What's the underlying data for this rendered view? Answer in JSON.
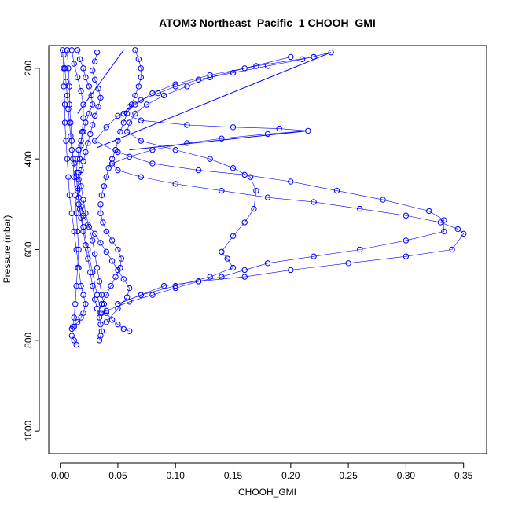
{
  "chart_data": {
    "type": "scatter",
    "title": "ATOM3 Northeast_Pacific_1 CHOOH_GMI",
    "xlabel": "CHOOH_GMI",
    "ylabel": "Pressure (mbar)",
    "xlim": [
      -0.01,
      0.37
    ],
    "ylim": [
      1050,
      150
    ],
    "y_reversed": true,
    "grid": false,
    "x_ticks": [
      0.0,
      0.05,
      0.1,
      0.15,
      0.2,
      0.25,
      0.3,
      0.35
    ],
    "x_tick_labels": [
      "0.00",
      "0.05",
      "0.10",
      "0.15",
      "0.20",
      "0.25",
      "0.30",
      "0.35"
    ],
    "y_ticks": [
      200,
      400,
      600,
      800,
      1000
    ],
    "y_tick_labels": [
      "200",
      "400",
      "600",
      "800",
      "1000"
    ],
    "color": "#0000ff",
    "marker": "open-circle",
    "series": [
      {
        "x": [
          0.235,
          0.21,
          0.18,
          0.15,
          0.12,
          0.1,
          0.085,
          0.07,
          0.06,
          0.055,
          0.07,
          0.11,
          0.15,
          0.19,
          0.215,
          0.18,
          0.14,
          0.11,
          0.08,
          0.06,
          0.045,
          0.05,
          0.07,
          0.1,
          0.14,
          0.18,
          0.22,
          0.26,
          0.3,
          0.33,
          0.345,
          0.35,
          0.34,
          0.3,
          0.25,
          0.2,
          0.16,
          0.12,
          0.09,
          0.07,
          0.05
        ],
        "y": [
          165,
          180,
          195,
          210,
          225,
          240,
          255,
          270,
          285,
          300,
          315,
          325,
          330,
          333,
          338,
          345,
          355,
          365,
          380,
          395,
          410,
          425,
          440,
          455,
          470,
          485,
          495,
          510,
          525,
          540,
          555,
          565,
          600,
          615,
          630,
          645,
          660,
          670,
          680,
          700,
          720
        ]
      },
      {
        "x": [
          0.22,
          0.17,
          0.13,
          0.1,
          0.08,
          0.065,
          0.05,
          0.04,
          0.03,
          0.05,
          0.08,
          0.12,
          0.16,
          0.2,
          0.24,
          0.28,
          0.32,
          0.333,
          0.333,
          0.3,
          0.26,
          0.22,
          0.18,
          0.16,
          0.14,
          0.12,
          0.1,
          0.08,
          0.06,
          0.04
        ],
        "y": [
          175,
          195,
          215,
          235,
          255,
          280,
          305,
          330,
          360,
          385,
          410,
          425,
          435,
          450,
          470,
          490,
          515,
          535,
          560,
          580,
          600,
          615,
          630,
          645,
          660,
          670,
          685,
          700,
          715,
          735
        ]
      },
      {
        "x": [
          0.2,
          0.16,
          0.13,
          0.11,
          0.09,
          0.075,
          0.065,
          0.06,
          0.058,
          0.07,
          0.1,
          0.13,
          0.15,
          0.165,
          0.17,
          0.168,
          0.16,
          0.15,
          0.14,
          0.145,
          0.15,
          0.13,
          0.1,
          0.07,
          0.05
        ],
        "y": [
          175,
          200,
          220,
          240,
          260,
          280,
          300,
          320,
          340,
          360,
          380,
          400,
          420,
          440,
          470,
          510,
          540,
          570,
          605,
          620,
          640,
          660,
          680,
          700,
          720
        ]
      },
      {
        "x": [
          0.065,
          0.068,
          0.07,
          0.07,
          0.068,
          0.065,
          0.062,
          0.058,
          0.055,
          0.052,
          0.05,
          0.048,
          0.045,
          0.042,
          0.04,
          0.038,
          0.036,
          0.035,
          0.035,
          0.037,
          0.04,
          0.045,
          0.05,
          0.053,
          0.052,
          0.048,
          0.044,
          0.04,
          0.036,
          0.035
        ],
        "y": [
          160,
          180,
          200,
          220,
          240,
          260,
          280,
          300,
          320,
          340,
          360,
          380,
          400,
          420,
          440,
          460,
          480,
          500,
          520,
          540,
          560,
          580,
          600,
          620,
          640,
          660,
          680,
          700,
          720,
          740
        ]
      },
      {
        "x": [
          0.032,
          0.03,
          0.028,
          0.03,
          0.033,
          0.035,
          0.033,
          0.03,
          0.028,
          0.026,
          0.024,
          0.022,
          0.02,
          0.018,
          0.016,
          0.015,
          0.016,
          0.018,
          0.02,
          0.024,
          0.03,
          0.035,
          0.04,
          0.045,
          0.05,
          0.055,
          0.06,
          0.058,
          0.05,
          0.04
        ],
        "y": [
          165,
          185,
          205,
          225,
          245,
          265,
          285,
          305,
          325,
          345,
          365,
          385,
          405,
          425,
          445,
          465,
          485,
          505,
          525,
          545,
          565,
          585,
          605,
          625,
          645,
          665,
          685,
          705,
          730,
          760
        ]
      },
      {
        "x": [
          0.003,
          0.004,
          0.005,
          0.006,
          0.007,
          0.008,
          0.009,
          0.01,
          0.012,
          0.014,
          0.015,
          0.016,
          0.018,
          0.02,
          0.022,
          0.024,
          0.026,
          0.028,
          0.03,
          0.032,
          0.034,
          0.035,
          0.036,
          0.035,
          0.034
        ],
        "y": [
          170,
          200,
          230,
          260,
          290,
          320,
          350,
          380,
          410,
          440,
          470,
          500,
          530,
          560,
          590,
          620,
          650,
          680,
          710,
          730,
          750,
          765,
          780,
          790,
          800
        ]
      },
      {
        "x": [
          0.006,
          0.007,
          0.008,
          0.008,
          0.009,
          0.01,
          0.011,
          0.012,
          0.013,
          0.014,
          0.015,
          0.016,
          0.015,
          0.014,
          0.013,
          0.012,
          0.011,
          0.01,
          0.012,
          0.014
        ],
        "y": [
          160,
          200,
          240,
          280,
          320,
          360,
          400,
          440,
          480,
          520,
          560,
          600,
          640,
          680,
          720,
          750,
          770,
          790,
          800,
          810
        ]
      },
      {
        "x": [
          0.01,
          0.012,
          0.015,
          0.018,
          0.02,
          0.02,
          0.019,
          0.018,
          0.017,
          0.016,
          0.018,
          0.02,
          0.022,
          0.025,
          0.028,
          0.03,
          0.032,
          0.034,
          0.036,
          0.038,
          0.04,
          0.045,
          0.05,
          0.055,
          0.06
        ],
        "y": [
          160,
          190,
          220,
          250,
          280,
          310,
          340,
          370,
          400,
          430,
          460,
          490,
          520,
          550,
          580,
          610,
          640,
          670,
          700,
          720,
          740,
          755,
          765,
          775,
          780
        ]
      },
      {
        "x": [
          0.002,
          0.003,
          0.003,
          0.004,
          0.004,
          0.005,
          0.006,
          0.007,
          0.008,
          0.01,
          0.012,
          0.014,
          0.016,
          0.018,
          0.02,
          0.022,
          0.02,
          0.018,
          0.015,
          0.012,
          0.01
        ],
        "y": [
          160,
          200,
          240,
          280,
          320,
          360,
          400,
          440,
          480,
          520,
          560,
          600,
          640,
          680,
          700,
          720,
          740,
          750,
          760,
          770,
          775
        ]
      },
      {
        "x": [
          0.015,
          0.017,
          0.02,
          0.022,
          0.025,
          0.027,
          0.028,
          0.025,
          0.022,
          0.02,
          0.018,
          0.016,
          0.015,
          0.014,
          0.015,
          0.017,
          0.02,
          0.024,
          0.028,
          0.032,
          0.036
        ],
        "y": [
          160,
          180,
          200,
          220,
          240,
          260,
          280,
          300,
          320,
          340,
          360,
          380,
          400,
          430,
          470,
          510,
          550,
          600,
          650,
          700,
          740
        ]
      }
    ],
    "lines": [
      {
        "x": [
          0.015,
          0.055
        ],
        "y": [
          300,
          160
        ]
      },
      {
        "x": [
          0.032,
          0.235
        ],
        "y": [
          375,
          165
        ]
      },
      {
        "x": [
          0.06,
          0.215
        ],
        "y": [
          380,
          338
        ]
      }
    ]
  }
}
